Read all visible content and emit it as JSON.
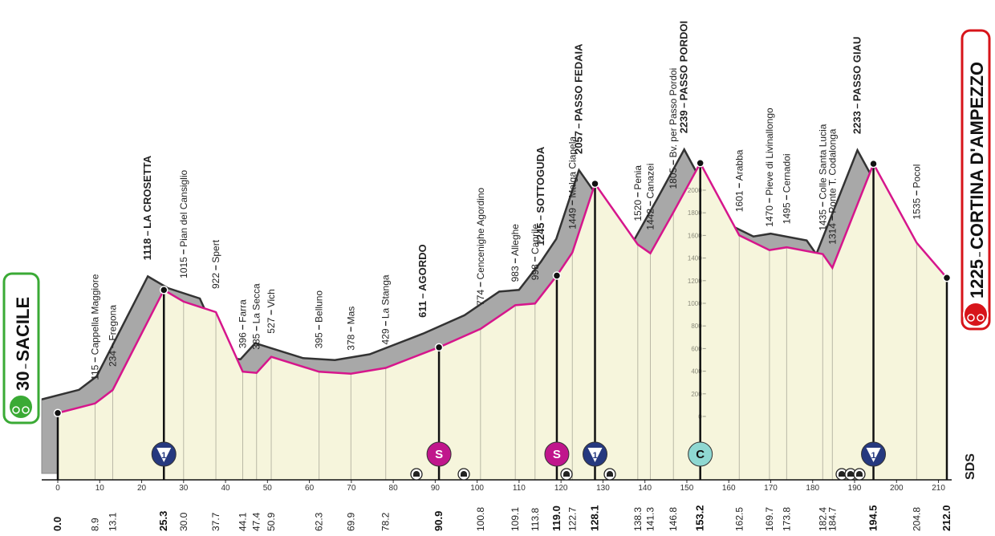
{
  "chart_data": {
    "type": "profile",
    "x": [
      {
        "value": 0,
        "label": "0.0"
      },
      8.9,
      13.1,
      25.3,
      {
        "value": 30,
        "label": "30.0"
      },
      37.7,
      44.1,
      47.4,
      50.9,
      62.3,
      69.9,
      78.2,
      90.9,
      100.8,
      109.1,
      113.8,
      {
        "value": 119,
        "label": "119.0"
      },
      122.7,
      128.1,
      138.3,
      141.3,
      146.8,
      153.2,
      162.5,
      169.7,
      173.8,
      182.4,
      184.7,
      194.5,
      204.8,
      {
        "value": 212,
        "label": "212.0"
      }
    ],
    "values": [
      30,
      115,
      234,
      1118,
      1015,
      922,
      396,
      385,
      527,
      395,
      378,
      429,
      611,
      774,
      983,
      998,
      1245,
      1449,
      2057,
      1520,
      1442,
      1805,
      2239,
      1601,
      1470,
      1495,
      1435,
      1314,
      2233,
      1535,
      1225
    ],
    "names": [
      "SACILE",
      "Cappella Maggiore",
      "Fregona",
      "LA CROSETTA",
      "Pian del Cansiglio",
      "Spert",
      "Farra",
      "La Secca",
      "Vich",
      "Belluno",
      "Mas",
      "La Stanga",
      "AGORDO",
      "Cencenighe Agordino",
      "Alleghe",
      "Caprile",
      "SOTTOGUDA",
      "Malga Ciapela",
      "PASSO FEDAIA",
      "Penia",
      "Canazei",
      "Bv. per Passo Pordoi",
      "PASSO PORDOI",
      "Arabba",
      "Pieve di Livinallongo",
      "Cernadoi",
      "Colle Santa Lucia",
      "Ponte T. Codalonga",
      "PASSO GIAU",
      "Pocol",
      "CORTINA D'AMPEZZO"
    ],
    "xlim": [
      0,
      212
    ],
    "xticks": [
      0,
      10,
      20,
      30,
      40,
      50,
      60,
      70,
      80,
      90,
      100,
      110,
      120,
      130,
      140,
      150,
      160,
      170,
      180,
      190,
      200,
      210
    ],
    "ylim": [
      0,
      2000
    ],
    "yticks": [
      0,
      200,
      400,
      600,
      800,
      1000,
      1200,
      1400,
      1600,
      1800,
      2000
    ],
    "line_color": "#d6168c",
    "badges": [
      "1",
      "S",
      "S",
      "1",
      "C",
      "1"
    ],
    "logo": "SDS"
  }
}
